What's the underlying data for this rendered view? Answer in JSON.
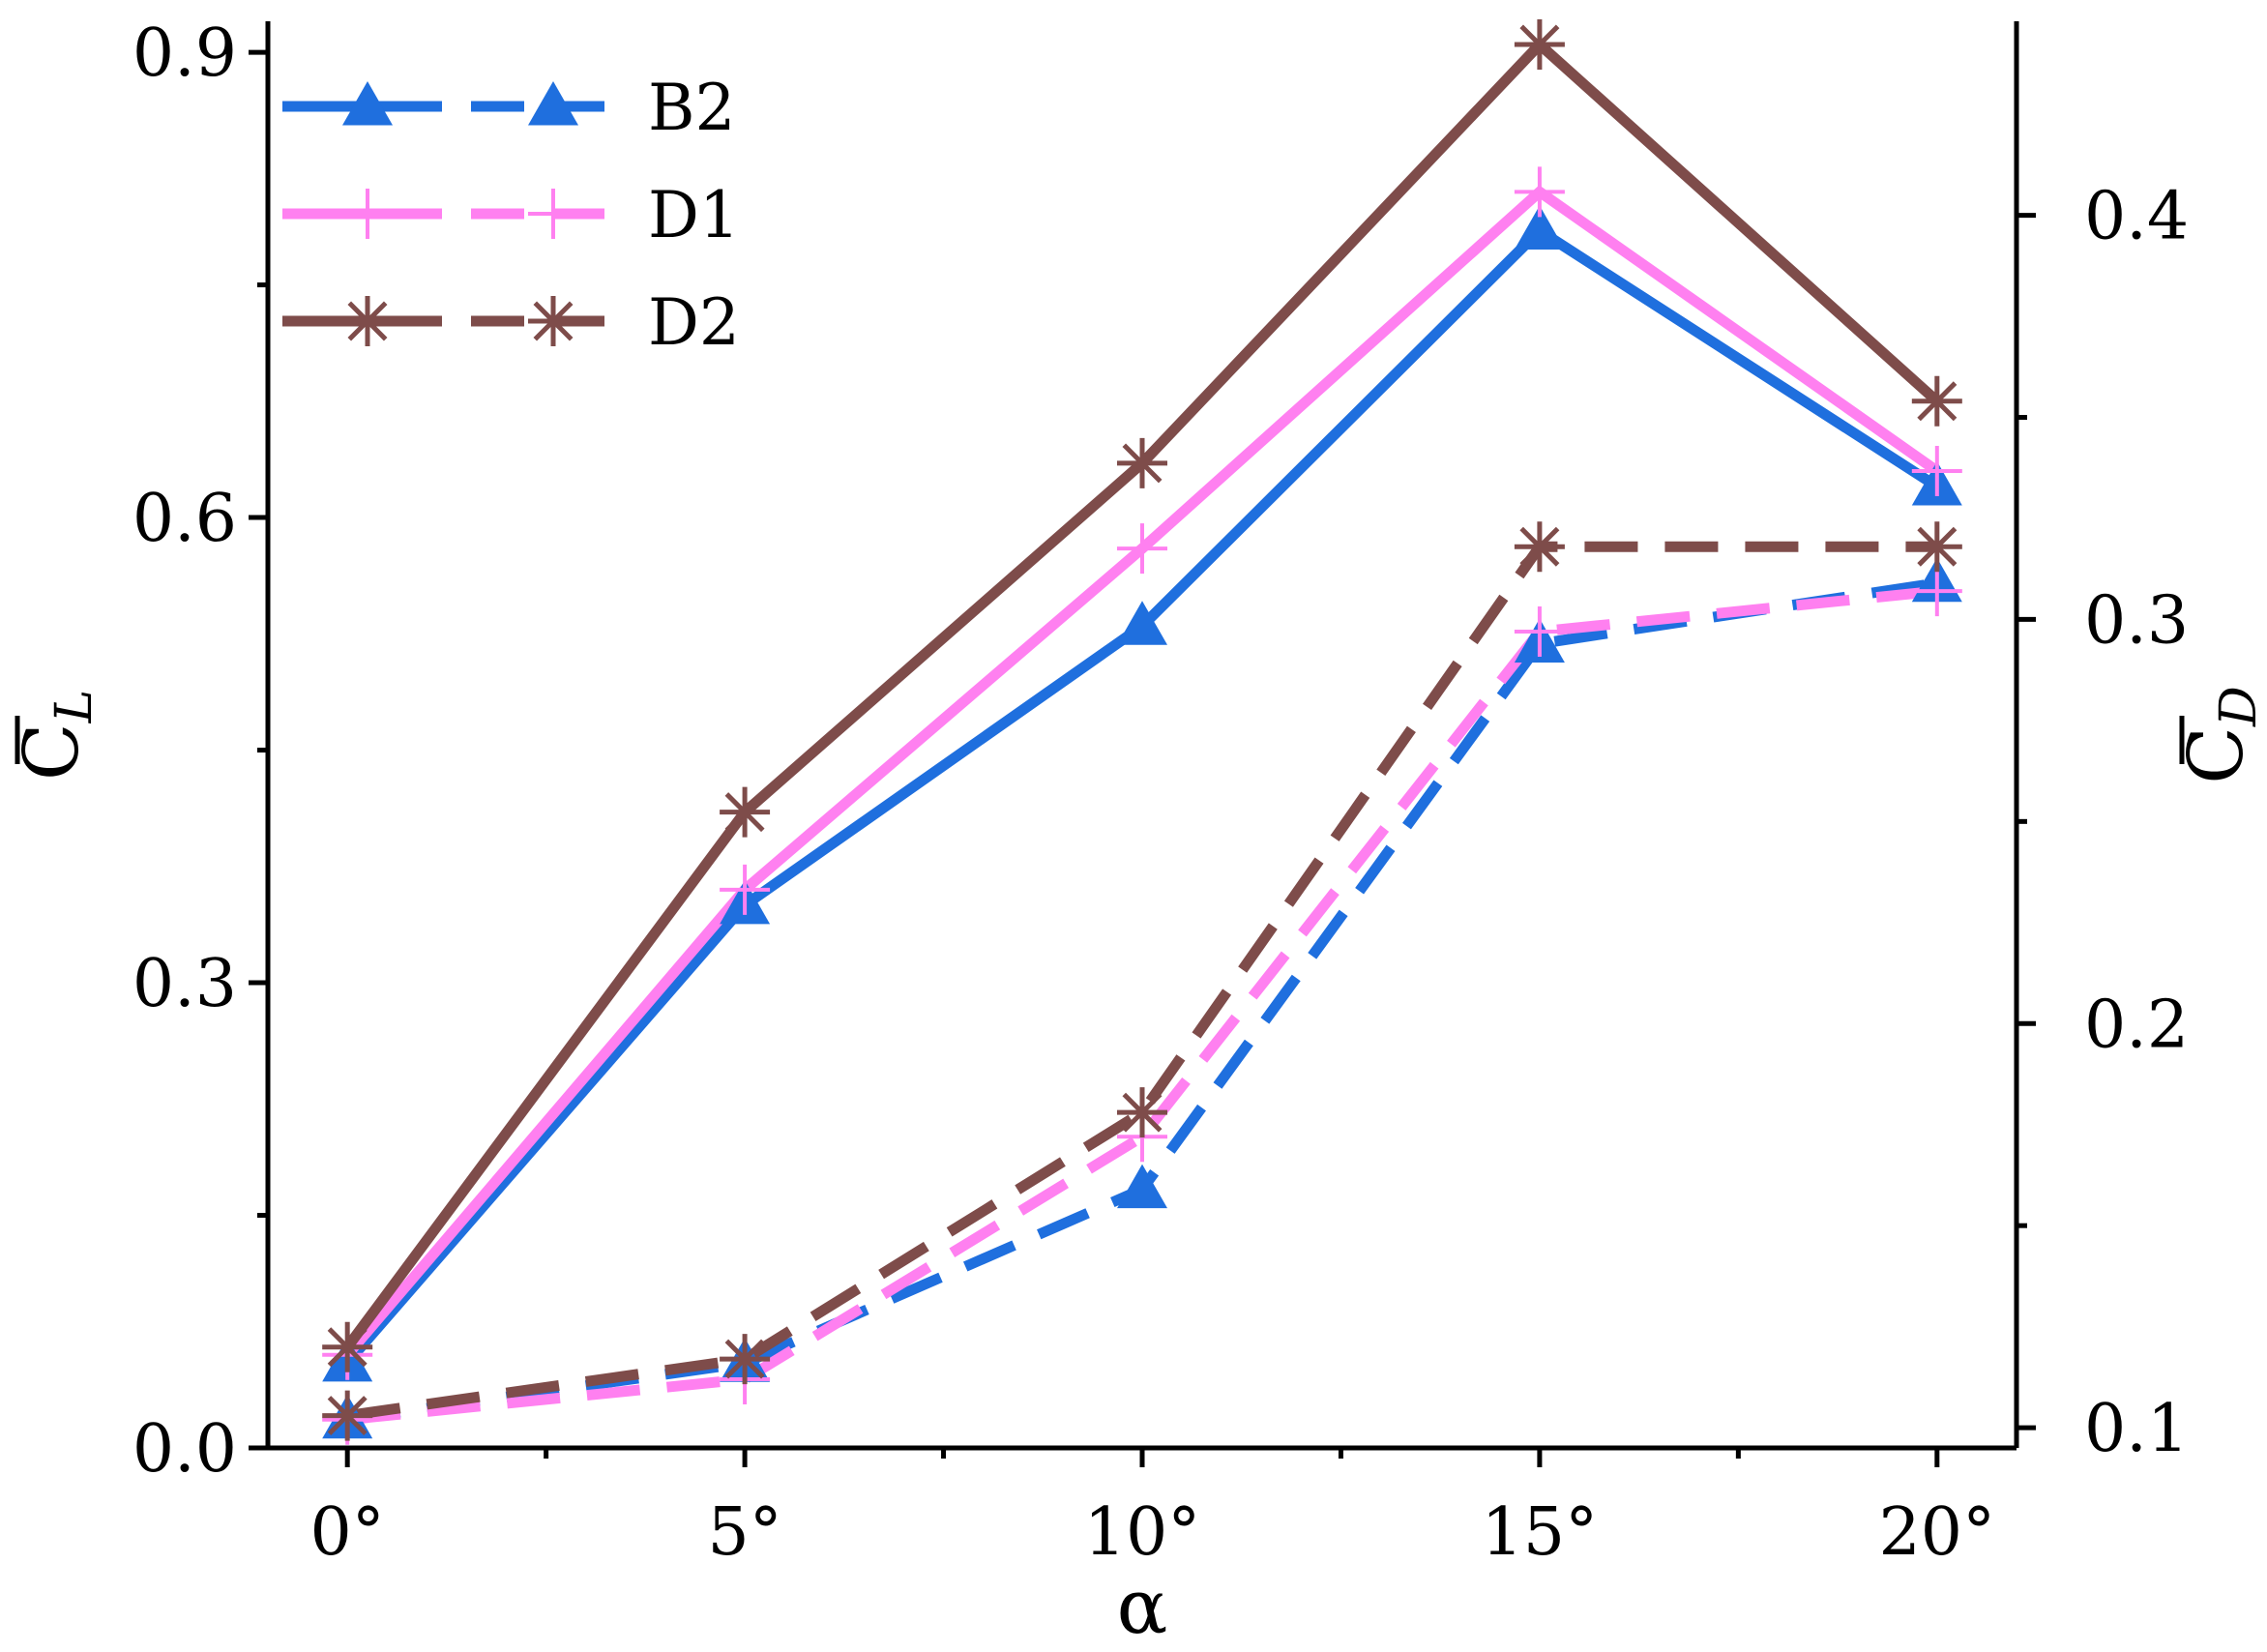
{
  "chart_data": {
    "type": "line",
    "title": "",
    "xlabel": "α",
    "ylabel_left": "C̄_L",
    "ylabel_right": "C̄_D",
    "ylabel_left_parts": {
      "base": "C",
      "sub": "L"
    },
    "ylabel_right_parts": {
      "base": "C",
      "sub": "D"
    },
    "categories": [
      "0°",
      "5°",
      "10°",
      "15°",
      "20°"
    ],
    "x": [
      0,
      5,
      10,
      15,
      20
    ],
    "xlim": [
      -1,
      21
    ],
    "ylim_left": [
      0.0,
      0.92
    ],
    "ylim_right": [
      0.095,
      0.448
    ],
    "y_ticks_left": [
      "0.0",
      "0.3",
      "0.6",
      "0.9"
    ],
    "y_ticks_left_values": [
      0.0,
      0.3,
      0.6,
      0.9
    ],
    "y_ticks_right": [
      "0.1",
      "0.2",
      "0.3",
      "0.4"
    ],
    "y_ticks_right_values": [
      0.1,
      0.2,
      0.3,
      0.4
    ],
    "grid": false,
    "legend_position": "top-left",
    "series": [
      {
        "name": "B2",
        "color": "#1f6fde",
        "marker": "triangle",
        "lift_CL": [
          0.055,
          0.35,
          0.53,
          0.785,
          0.62
        ],
        "drag_CD": [
          0.102,
          0.116,
          0.159,
          0.294,
          0.309
        ]
      },
      {
        "name": "D1",
        "color": "#ff80f0",
        "marker": "plus",
        "lift_CL": [
          0.06,
          0.36,
          0.58,
          0.81,
          0.63
        ],
        "drag_CD": [
          0.102,
          0.112,
          0.172,
          0.297,
          0.307
        ]
      },
      {
        "name": "D2",
        "color": "#7e4c4a",
        "marker": "asterisk",
        "lift_CL": [
          0.065,
          0.41,
          0.635,
          0.905,
          0.675
        ],
        "drag_CD": [
          0.103,
          0.117,
          0.178,
          0.318,
          0.318
        ]
      }
    ]
  }
}
